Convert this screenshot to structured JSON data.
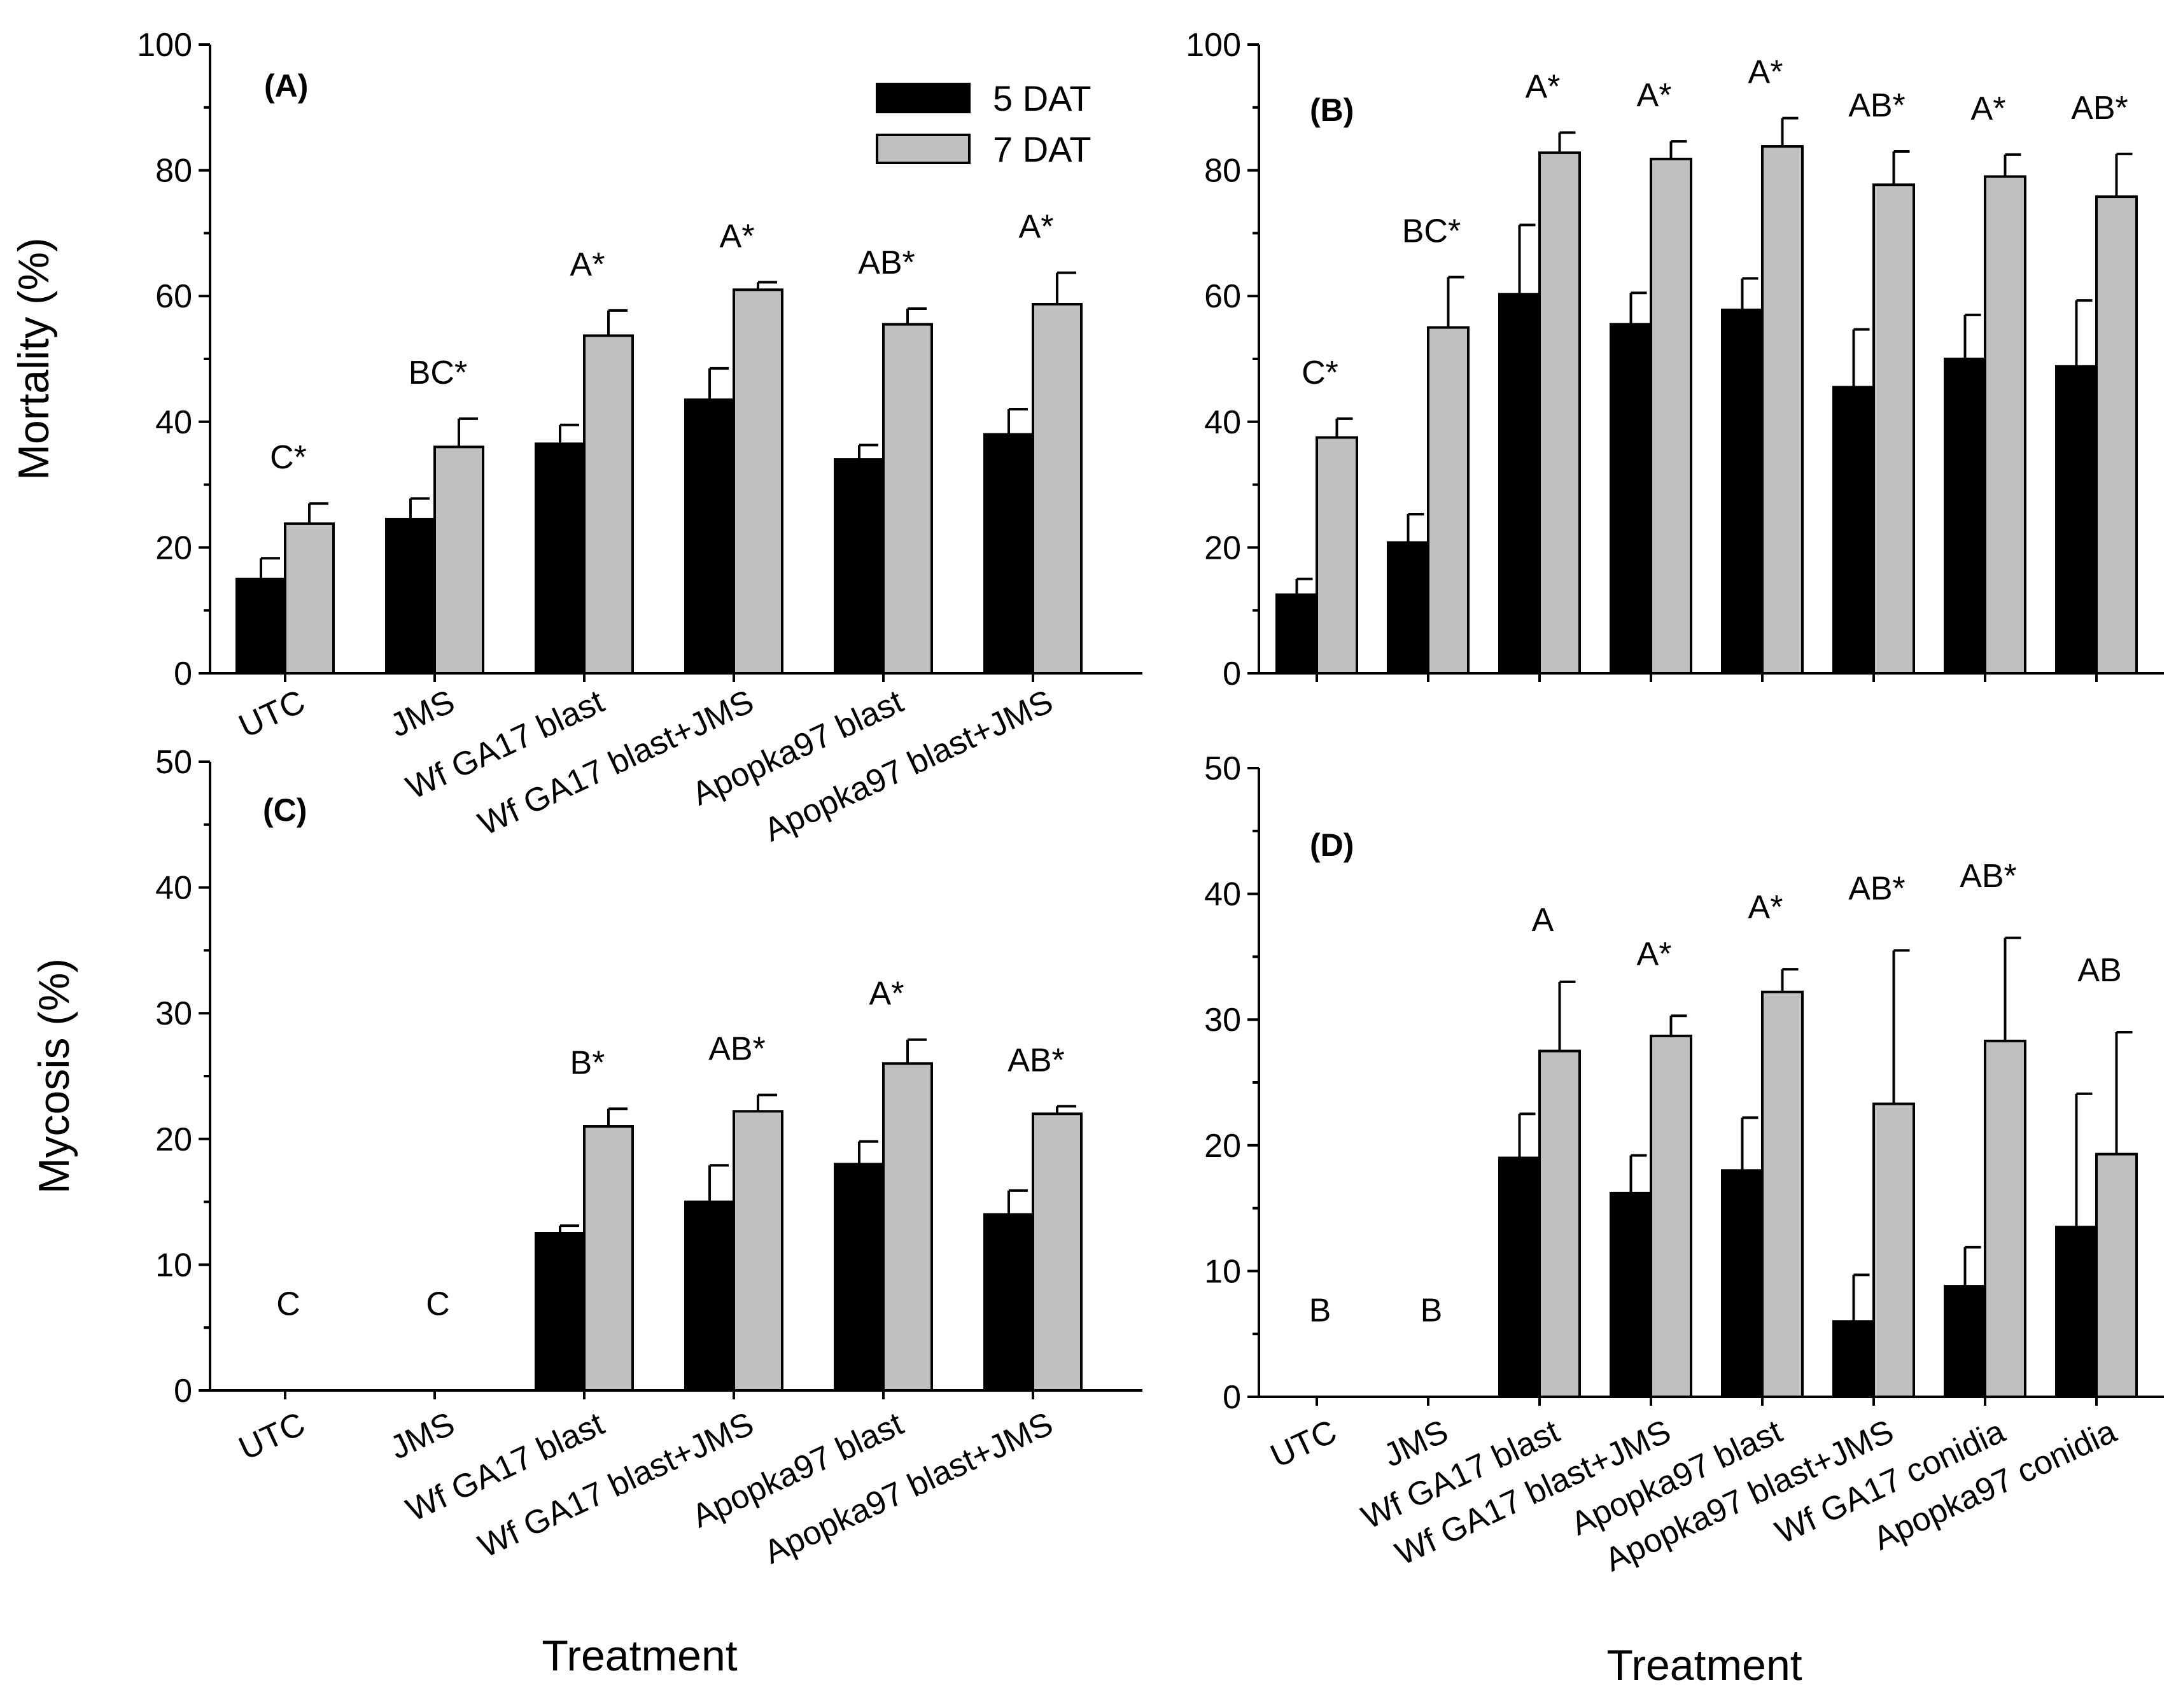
{
  "figure": {
    "x_axis_title": "Treatment",
    "legend": [
      {
        "label": "5 DAT",
        "color": "#000000"
      },
      {
        "label": "7 DAT",
        "color": "#c0c0c0"
      }
    ]
  },
  "chart_data": [
    {
      "id": "A",
      "type": "bar",
      "panel_label": "(A)",
      "ylabel": "Mortality (%)",
      "xlabel": "Treatment",
      "ylim": [
        0,
        100
      ],
      "yticks": [
        0,
        20,
        40,
        60,
        80,
        100
      ],
      "categories": [
        "UTC",
        "JMS",
        "Wf GA17 blast",
        "Wf GA17 blast+JMS",
        "Apopka97 blast",
        "Apopka97 blast+JMS"
      ],
      "series": [
        {
          "name": "5 DAT",
          "color": "#000000",
          "values": [
            15,
            24.5,
            36.5,
            43.5,
            34,
            38
          ],
          "errors": [
            3.3,
            3.3,
            3,
            5,
            2.3,
            4
          ]
        },
        {
          "name": "7 DAT",
          "color": "#c0c0c0",
          "values": [
            23.8,
            36,
            53.7,
            61,
            55.5,
            58.7
          ],
          "errors": [
            3.2,
            4.5,
            4,
            1.2,
            2.5,
            5
          ]
        }
      ],
      "annotations": [
        "C*",
        "BC*",
        "A*",
        "A*",
        "AB*",
        "A*"
      ]
    },
    {
      "id": "B",
      "type": "bar",
      "panel_label": "(B)",
      "ylabel": "",
      "xlabel": "",
      "ylim": [
        0,
        100
      ],
      "yticks": [
        0,
        20,
        40,
        60,
        80,
        100
      ],
      "categories": [
        "UTC",
        "JMS",
        "Wf GA17 blast",
        "Wf GA17 blast+JMS",
        "Apopka97 blast",
        "Apopka97 blast+JMS",
        "Wf GA17 conidia",
        "Apopka97 conidia"
      ],
      "series": [
        {
          "name": "5 DAT",
          "color": "#000000",
          "values": [
            12.5,
            20.8,
            60.3,
            55.5,
            57.8,
            45.5,
            50,
            48.8
          ],
          "errors": [
            2.5,
            4.5,
            11,
            5,
            5,
            9.2,
            7,
            10.5
          ]
        },
        {
          "name": "7 DAT",
          "color": "#c0c0c0",
          "values": [
            37.5,
            55,
            82.8,
            81.8,
            83.8,
            77.7,
            79,
            75.8
          ],
          "errors": [
            3,
            8,
            3.2,
            2.8,
            4.5,
            5.3,
            3.5,
            6.8
          ]
        }
      ],
      "annotations": [
        "C*",
        "BC*",
        "A*",
        "A*",
        "A*",
        "AB*",
        "A*",
        "AB*"
      ]
    },
    {
      "id": "C",
      "type": "bar",
      "panel_label": "(C)",
      "ylabel": "Mycosis (%)",
      "xlabel": "Treatment",
      "ylim": [
        0,
        50
      ],
      "yticks": [
        0,
        10,
        20,
        30,
        40,
        50
      ],
      "categories": [
        "UTC",
        "JMS",
        "Wf GA17 blast",
        "Wf GA17 blast+JMS",
        "Apopka97 blast",
        "Apopka97 blast+JMS"
      ],
      "series": [
        {
          "name": "5 DAT",
          "color": "#000000",
          "values": [
            0,
            0,
            12.5,
            15,
            18,
            14
          ],
          "errors": [
            0,
            0,
            0.6,
            2.9,
            1.8,
            1.9
          ]
        },
        {
          "name": "7 DAT",
          "color": "#c0c0c0",
          "values": [
            0,
            0,
            21,
            22.2,
            26,
            22
          ],
          "errors": [
            0,
            0,
            1.4,
            1.3,
            1.9,
            0.6
          ]
        }
      ],
      "annotations": [
        "C",
        "C",
        "B*",
        "AB*",
        "A*",
        "AB*"
      ]
    },
    {
      "id": "D",
      "type": "bar",
      "panel_label": "(D)",
      "ylabel": "",
      "xlabel": "Treatment",
      "ylim": [
        0,
        50
      ],
      "yticks": [
        0,
        10,
        20,
        30,
        40,
        50
      ],
      "categories": [
        "UTC",
        "JMS",
        "Wf GA17 blast",
        "Wf GA17 blast+JMS",
        "Apopka97 blast",
        "Apopka97 blast+JMS",
        "Wf GA17 conidia",
        "Apopka97 conidia"
      ],
      "series": [
        {
          "name": "5 DAT",
          "color": "#000000",
          "values": [
            0,
            0,
            19,
            16.2,
            18,
            6,
            8.8,
            13.5
          ],
          "errors": [
            0,
            0,
            3.5,
            3,
            4.2,
            3.7,
            3.1,
            10.6
          ]
        },
        {
          "name": "7 DAT",
          "color": "#c0c0c0",
          "values": [
            0,
            0,
            27.5,
            28.7,
            32.2,
            23.3,
            28.3,
            19.3
          ],
          "errors": [
            0,
            0,
            5.5,
            1.6,
            1.8,
            12.2,
            8.2,
            9.7
          ]
        }
      ],
      "annotations": [
        "B",
        "B",
        "A",
        "A*",
        "A*",
        "AB*",
        "AB*",
        "AB"
      ]
    }
  ]
}
